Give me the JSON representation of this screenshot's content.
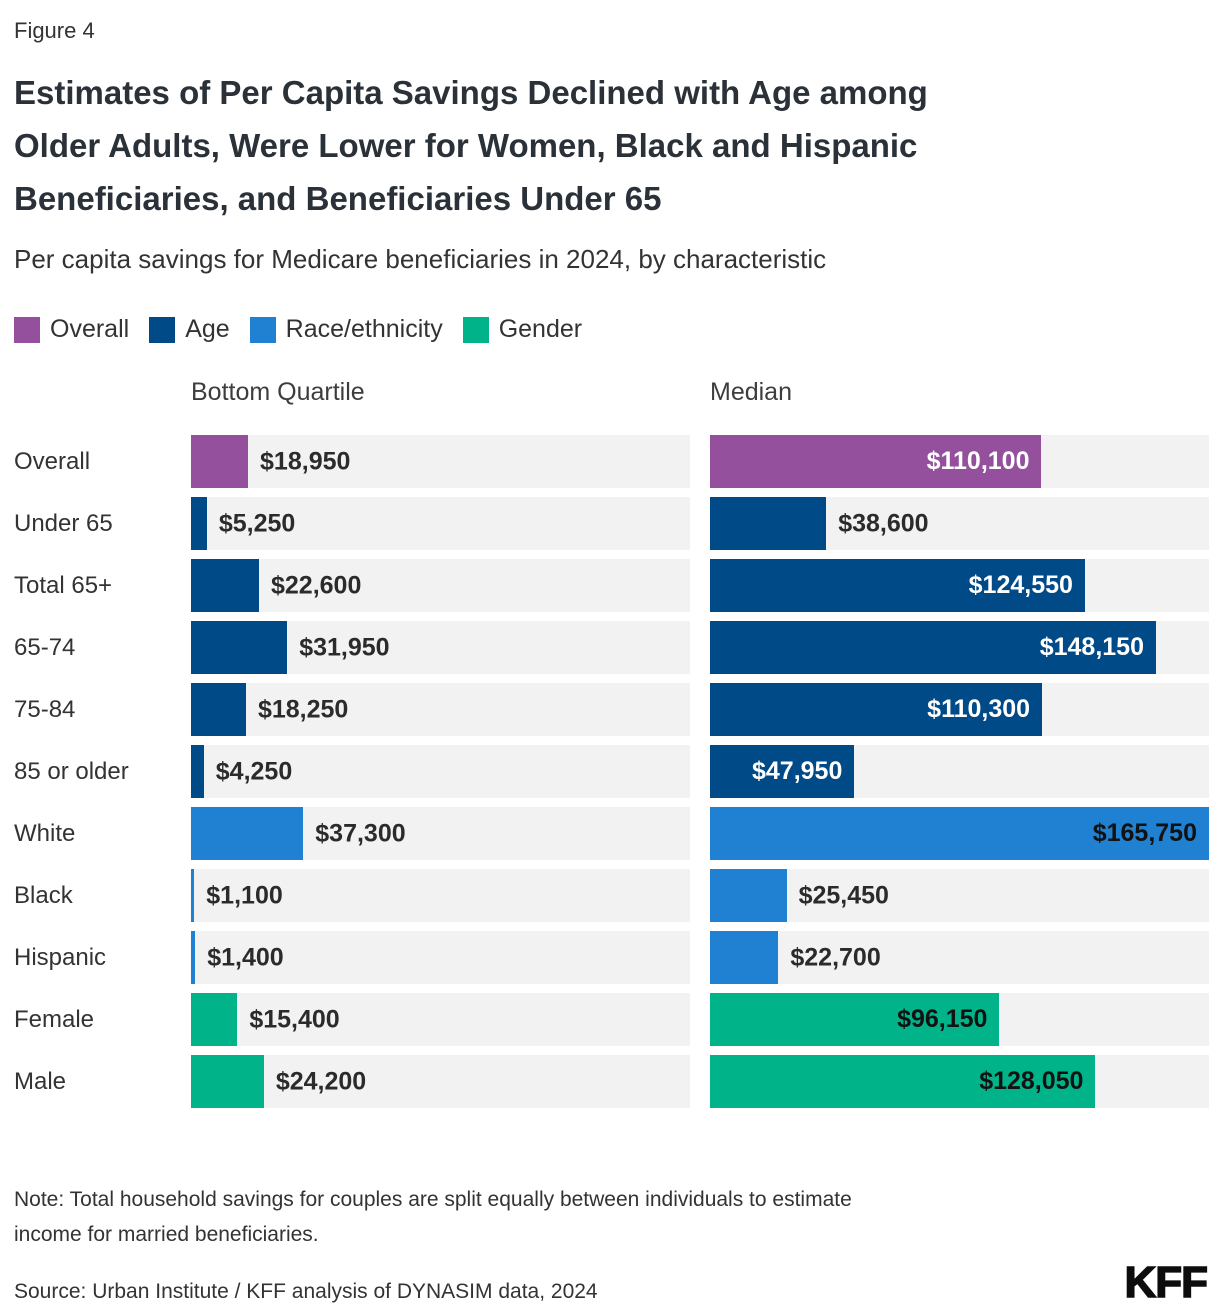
{
  "figure_label": "Figure 4",
  "title_lines": [
    "Estimates of Per Capita Savings Declined with Age among",
    "Older Adults, Were Lower for Women, Black and Hispanic",
    "Beneficiaries, and Beneficiaries Under 65"
  ],
  "subtitle": "Per capita savings for Medicare beneficiaries in 2024, by characteristic",
  "legend": [
    {
      "label": "Overall",
      "color": "#94509D"
    },
    {
      "label": "Age",
      "color": "#004A87"
    },
    {
      "label": "Race/ethnicity",
      "color": "#2080D2"
    },
    {
      "label": "Gender",
      "color": "#00B388"
    }
  ],
  "columns": [
    "Bottom Quartile",
    "Median"
  ],
  "note_lines": [
    "Note: Total household savings for couples are split equally between individuals to estimate",
    "income for married beneficiaries."
  ],
  "source": "Source: Urban Institute / KFF analysis of DYNASIM data, 2024",
  "logo_text": "KFF",
  "chart_data": {
    "type": "bar",
    "orientation": "horizontal",
    "unit": "USD",
    "title": "Per capita savings for Medicare beneficiaries in 2024, by characteristic",
    "legend_position": "top",
    "grid": false,
    "xlim": [
      0,
      165750
    ],
    "max_value": 165750,
    "track_color": "#F2F2F2",
    "categories": [
      "Overall",
      "Under 65",
      "Total 65+",
      "65-74",
      "75-84",
      "85 or older",
      "White",
      "Black",
      "Hispanic",
      "Female",
      "Male"
    ],
    "groups": [
      "Overall",
      "Age",
      "Age",
      "Age",
      "Age",
      "Age",
      "Race/ethnicity",
      "Race/ethnicity",
      "Race/ethnicity",
      "Gender",
      "Gender"
    ],
    "group_styles": {
      "Overall": {
        "color": "#94509D",
        "inside_label_color": "#FFFFFF"
      },
      "Age": {
        "color": "#004A87",
        "inside_label_color": "#FFFFFF"
      },
      "Race/ethnicity": {
        "color": "#2080D2",
        "inside_label_color": "#121212"
      },
      "Gender": {
        "color": "#00B388",
        "inside_label_color": "#121212"
      }
    },
    "series": [
      {
        "name": "Bottom Quartile",
        "values": [
          18950,
          5250,
          22600,
          31950,
          18250,
          4250,
          37300,
          1100,
          1400,
          15400,
          24200
        ],
        "labels": [
          "$18,950",
          "$5,250",
          "$22,600",
          "$31,950",
          "$18,250",
          "$4,250",
          "$37,300",
          "$1,100",
          "$1,400",
          "$15,400",
          "$24,200"
        ],
        "label_positions": [
          "outside",
          "outside",
          "outside",
          "outside",
          "outside",
          "outside",
          "outside",
          "outside",
          "outside",
          "outside",
          "outside"
        ]
      },
      {
        "name": "Median",
        "values": [
          110100,
          38600,
          124550,
          148150,
          110300,
          47950,
          165750,
          25450,
          22700,
          96150,
          128050
        ],
        "labels": [
          "$110,100",
          "$38,600",
          "$124,550",
          "$148,150",
          "$110,300",
          "$47,950",
          "$165,750",
          "$25,450",
          "$22,700",
          "$96,150",
          "$128,050"
        ],
        "label_positions": [
          "inside",
          "outside",
          "inside",
          "inside",
          "inside",
          "inside",
          "inside",
          "outside",
          "outside",
          "inside",
          "inside"
        ]
      }
    ]
  }
}
